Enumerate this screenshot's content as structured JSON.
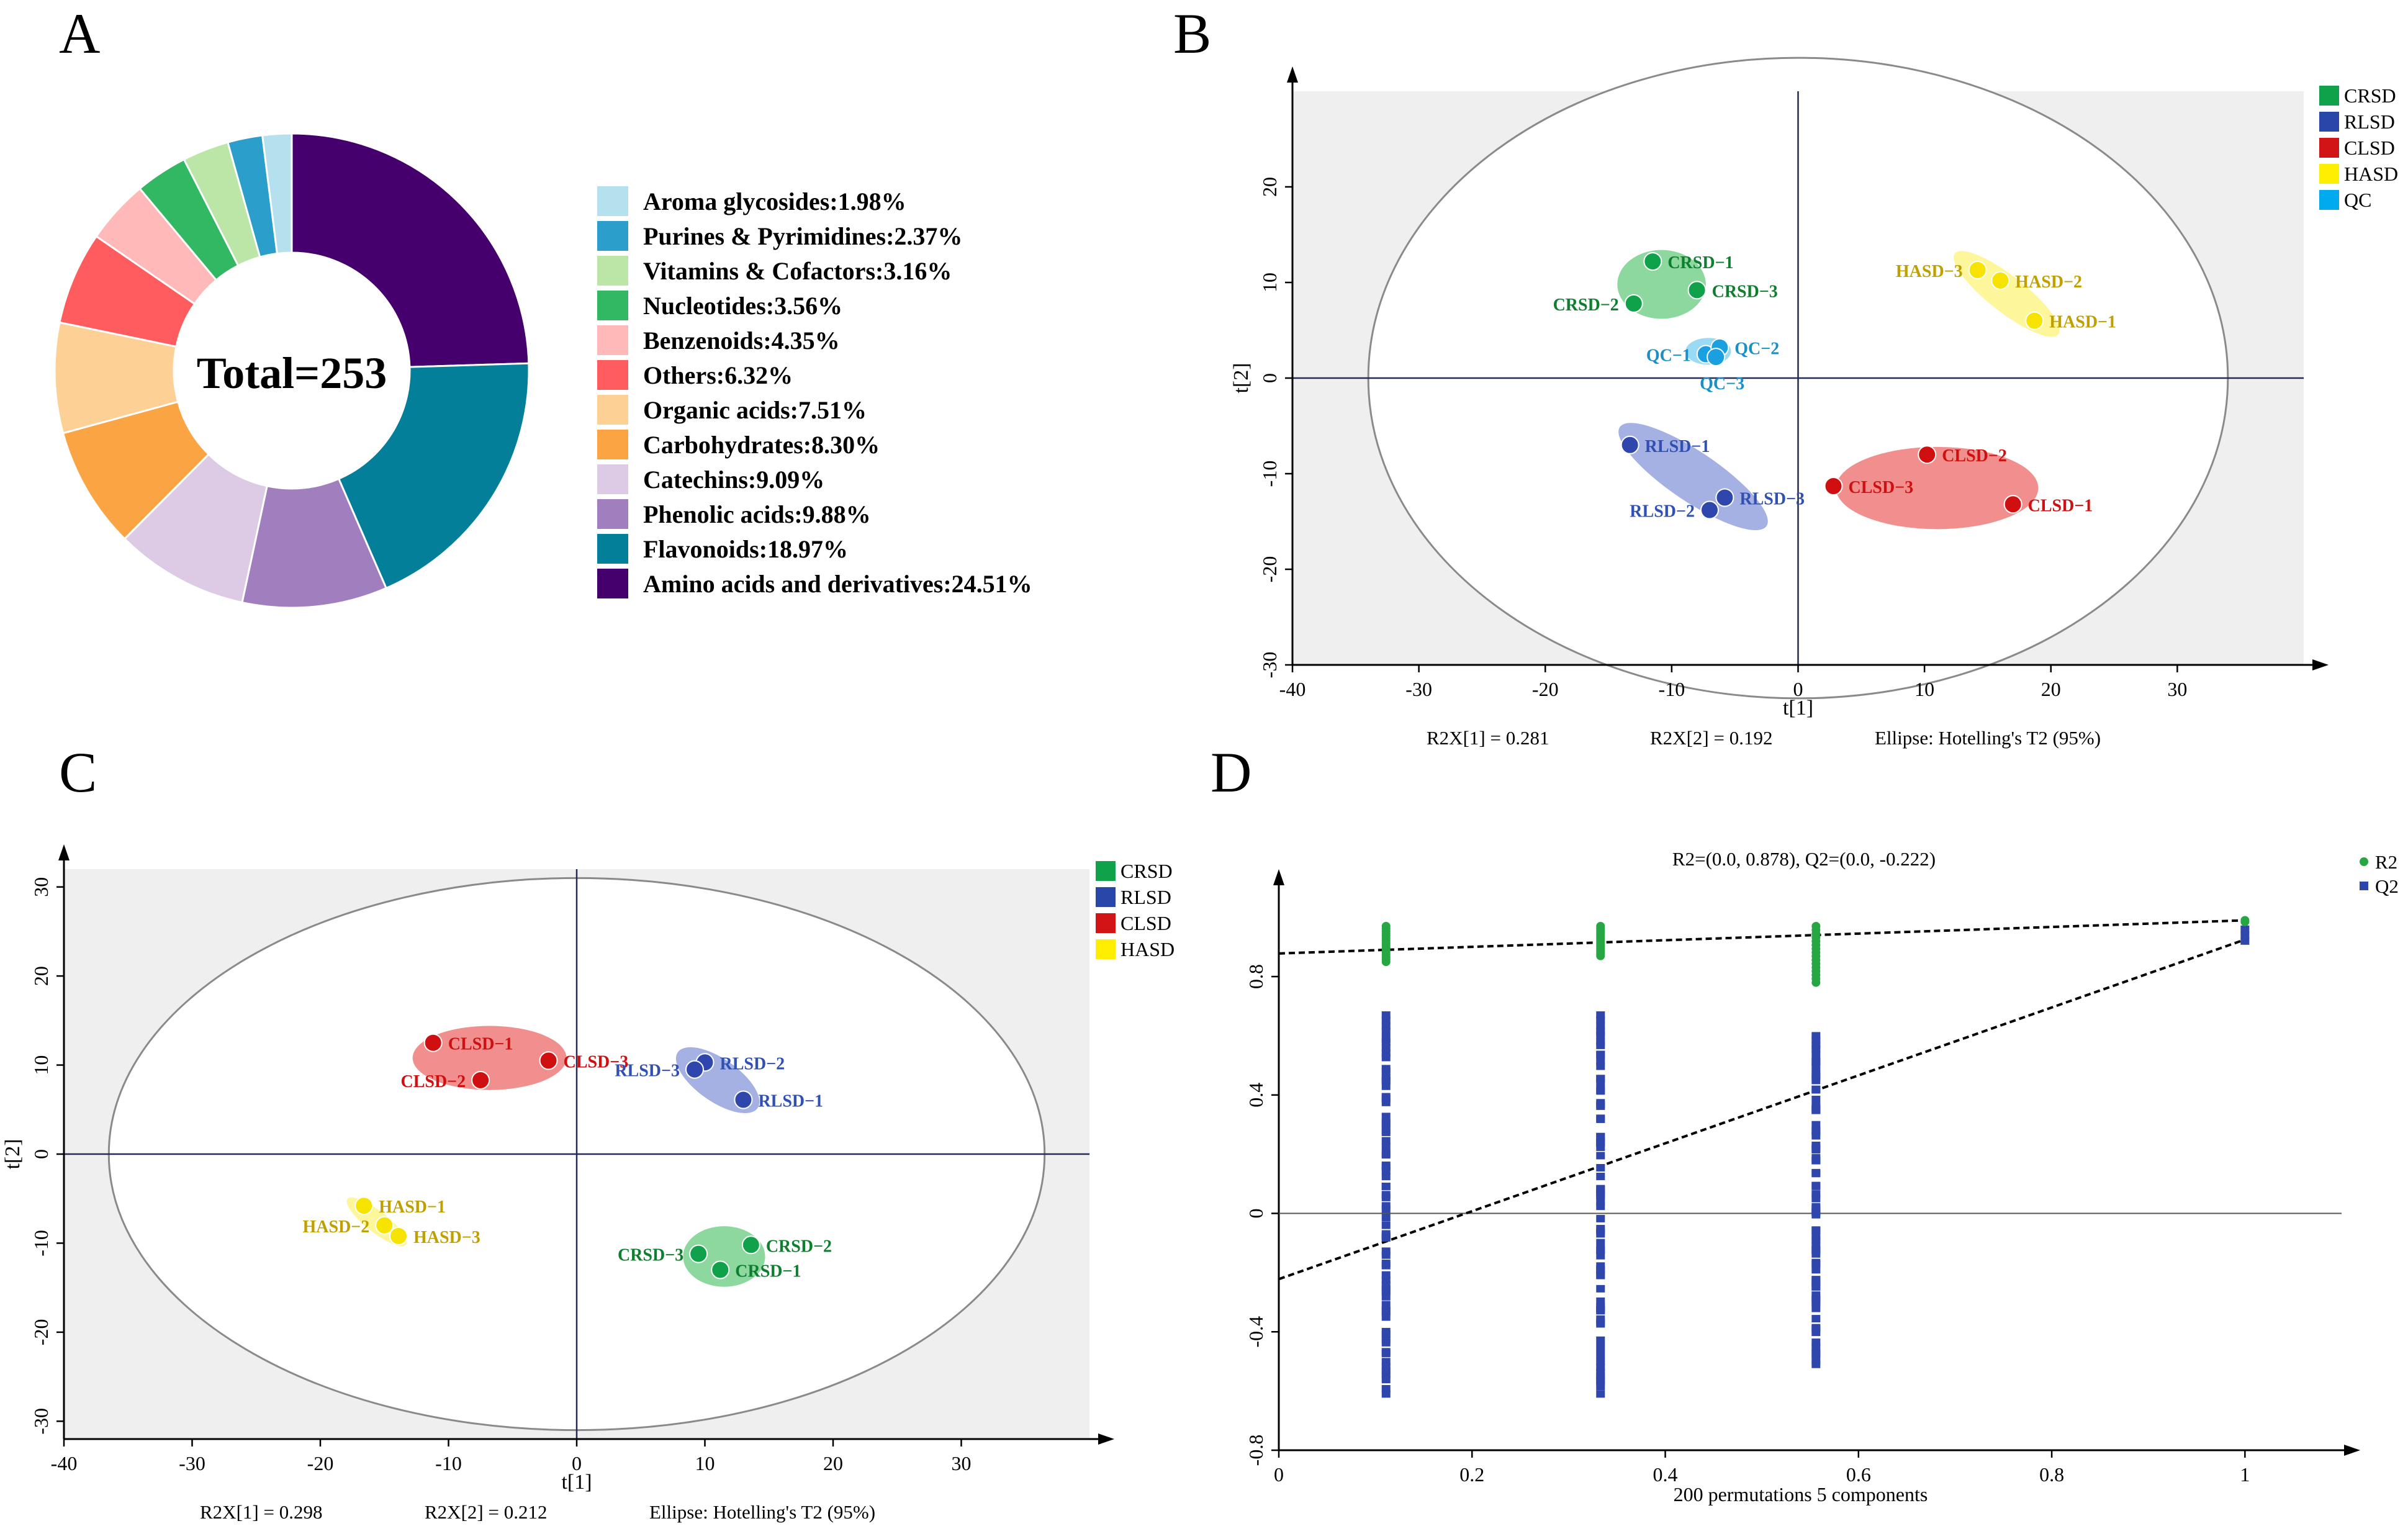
{
  "panels": {
    "a": "A",
    "b": "B",
    "c": "C",
    "d": "D"
  },
  "chart_data": [
    {
      "type": "pie",
      "panel": "A",
      "center_label": "Total=253",
      "total": 253,
      "slices": [
        {
          "label": "Amino acids and derivatives:24.51%",
          "value": 24.51,
          "color": "#46006e"
        },
        {
          "label": "Flavonoids:18.97%",
          "value": 18.97,
          "color": "#047f99"
        },
        {
          "label": "Phenolic acids:9.88%",
          "value": 9.88,
          "color": "#a17fbe"
        },
        {
          "label": "Catechins:9.09%",
          "value": 9.09,
          "color": "#ddcbe6"
        },
        {
          "label": "Carbohydrates:8.30%",
          "value": 8.3,
          "color": "#fba444"
        },
        {
          "label": "Organic acids:7.51%",
          "value": 7.51,
          "color": "#fdd195"
        },
        {
          "label": "Others:6.32%",
          "value": 6.32,
          "color": "#fe5c5e"
        },
        {
          "label": "Benzenoids:4.35%",
          "value": 4.35,
          "color": "#ffb9b9"
        },
        {
          "label": "Nucleotides:3.56%",
          "value": 3.56,
          "color": "#32b863"
        },
        {
          "label": "Vitamins & Cofactors:3.16%",
          "value": 3.16,
          "color": "#bce6a8"
        },
        {
          "label": "Purines & Pyrimidines:2.37%",
          "value": 2.37,
          "color": "#2c9ecc"
        },
        {
          "label": "Aroma glycosides:1.98%",
          "value": 1.98,
          "color": "#b5e1ef"
        }
      ]
    },
    {
      "type": "scatter",
      "panel": "B",
      "xlabel": "t[1]",
      "ylabel": "t[2]",
      "xlim": [
        -40,
        40
      ],
      "ylim": [
        -30,
        30
      ],
      "xticks": [
        -40,
        -30,
        -20,
        -10,
        0,
        10,
        20,
        30
      ],
      "yticks": [
        -30,
        -20,
        -10,
        0,
        10,
        20
      ],
      "ellipse": {
        "rx": 34,
        "ry": 33.5
      },
      "footer": [
        "R2X[1] = 0.281",
        "R2X[2] = 0.192",
        "Ellipse: Hotelling's T2 (95%)"
      ],
      "legend": [
        {
          "name": "CRSD",
          "color": "#0fa24a"
        },
        {
          "name": "RLSD",
          "color": "#2947a9"
        },
        {
          "name": "CLSD",
          "color": "#d21416"
        },
        {
          "name": "HASD",
          "color": "#ffee00"
        },
        {
          "name": "QC",
          "color": "#00aaee"
        }
      ],
      "groups": [
        {
          "name": "CRSD",
          "fill": "#7fd495",
          "dot": "#0fa24a",
          "text": "#0d7f2e",
          "cx": -10.8,
          "cy": 9.8,
          "rx": 3.5,
          "ry": 3.6,
          "rot": 0,
          "points": [
            {
              "label": "CRSD−1",
              "x": -11.5,
              "y": 12.2,
              "lx": 2
            },
            {
              "label": "CRSD−2",
              "x": -13,
              "y": 7.8,
              "lx": -2
            },
            {
              "label": "CRSD−3",
              "x": -8,
              "y": 9.2,
              "lx": 2
            }
          ]
        },
        {
          "name": "QC",
          "fill": "#8fd6f3",
          "dot": "#1a9fe0",
          "text": "#1a8fc8",
          "cx": -7.1,
          "cy": 2.8,
          "rx": 1.8,
          "ry": 1.4,
          "rot": 0,
          "points": [
            {
              "label": "QC−1",
              "x": -7.3,
              "y": 2.5,
              "lx": -2
            },
            {
              "label": "QC−2",
              "x": -6.2,
              "y": 3.2,
              "lx": 2
            },
            {
              "label": "QC−3",
              "x": -6.5,
              "y": 2.2,
              "lx": 0
            }
          ]
        },
        {
          "name": "HASD",
          "fill": "#fdf58f",
          "dot": "#f6e400",
          "text": "#c0a000",
          "cx": 16.5,
          "cy": 8.8,
          "rx": 5.2,
          "ry": 1.9,
          "rot": 38,
          "points": [
            {
              "label": "HASD−1",
              "x": 18.7,
              "y": 6,
              "lx": 2
            },
            {
              "label": "HASD−2",
              "x": 16,
              "y": 10.2,
              "lx": 2
            },
            {
              "label": "HASD−3",
              "x": 14.2,
              "y": 11.3,
              "lx": -2
            }
          ]
        },
        {
          "name": "RLSD",
          "fill": "#9ba8e0",
          "dot": "#2f46ad",
          "text": "#3050b4",
          "cx": -8.3,
          "cy": -10.3,
          "rx": 7,
          "ry": 2.6,
          "rot": 34,
          "points": [
            {
              "label": "RLSD−1",
              "x": -13.3,
              "y": -7,
              "lx": 2
            },
            {
              "label": "RLSD−2",
              "x": -7,
              "y": -13.8,
              "lx": -2
            },
            {
              "label": "RLSD−3",
              "x": -5.8,
              "y": -12.5,
              "lx": 2
            }
          ]
        },
        {
          "name": "CLSD",
          "fill": "#f08282",
          "dot": "#d01010",
          "text": "#d01010",
          "cx": 11,
          "cy": -11.5,
          "rx": 8,
          "ry": 4.3,
          "rot": 0,
          "points": [
            {
              "label": "CLSD−1",
              "x": 17,
              "y": -13.2,
              "lx": 2
            },
            {
              "label": "CLSD−2",
              "x": 10.2,
              "y": -8,
              "lx": 2
            },
            {
              "label": "CLSD−3",
              "x": 2.8,
              "y": -11.3,
              "lx": 2
            }
          ]
        }
      ]
    },
    {
      "type": "scatter",
      "panel": "C",
      "xlabel": "t[1]",
      "ylabel": "t[2]",
      "xlim": [
        -40,
        40
      ],
      "ylim": [
        -32,
        32
      ],
      "xticks": [
        -40,
        -30,
        -20,
        -10,
        0,
        10,
        20,
        30
      ],
      "yticks": [
        -30,
        -20,
        -10,
        0,
        10,
        20,
        30
      ],
      "ellipse": {
        "rx": 36.5,
        "ry": 31
      },
      "footer": [
        "R2X[1] = 0.298",
        "R2X[2] = 0.212",
        "Ellipse: Hotelling's T2 (95%)"
      ],
      "legend": [
        {
          "name": "CRSD",
          "color": "#0fa24a"
        },
        {
          "name": "RLSD",
          "color": "#2947a9"
        },
        {
          "name": "CLSD",
          "color": "#d21416"
        },
        {
          "name": "HASD",
          "color": "#ffee00"
        }
      ],
      "groups": [
        {
          "name": "CLSD",
          "fill": "#f08282",
          "dot": "#d01010",
          "text": "#d01010",
          "cx": -6.8,
          "cy": 10.8,
          "rx": 6,
          "ry": 3.6,
          "rot": 0,
          "points": [
            {
              "label": "CLSD−1",
              "x": -11.2,
              "y": 12.5,
              "lx": 2
            },
            {
              "label": "CLSD−2",
              "x": -7.5,
              "y": 8.3,
              "lx": -2
            },
            {
              "label": "CLSD−3",
              "x": -2.2,
              "y": 10.5,
              "lx": 2
            }
          ]
        },
        {
          "name": "RLSD",
          "fill": "#9ba8e0",
          "dot": "#2f46ad",
          "text": "#3050b4",
          "cx": 11,
          "cy": 8.3,
          "rx": 3.8,
          "ry": 2.4,
          "rot": 35,
          "points": [
            {
              "label": "RLSD−1",
              "x": 13,
              "y": 6.1,
              "lx": 2
            },
            {
              "label": "RLSD−2",
              "x": 10,
              "y": 10.3,
              "lx": 2
            },
            {
              "label": "RLSD−3",
              "x": 9.2,
              "y": 9.5,
              "lx": -2
            }
          ]
        },
        {
          "name": "HASD",
          "fill": "#fdf58f",
          "dot": "#f6e400",
          "text": "#c0a000",
          "cx": -15.6,
          "cy": -7.6,
          "rx": 2.9,
          "ry": 1.2,
          "rot": 38,
          "points": [
            {
              "label": "HASD−1",
              "x": -16.6,
              "y": -5.8,
              "lx": 2
            },
            {
              "label": "HASD−2",
              "x": -15,
              "y": -8,
              "lx": -2
            },
            {
              "label": "HASD−3",
              "x": -13.9,
              "y": -9.2,
              "lx": 2
            }
          ]
        },
        {
          "name": "CRSD",
          "fill": "#7fd495",
          "dot": "#0fa24a",
          "text": "#0d7f2e",
          "cx": 11.5,
          "cy": -11.5,
          "rx": 3.2,
          "ry": 3.4,
          "rot": 0,
          "points": [
            {
              "label": "CRSD−1",
              "x": 11.2,
              "y": -13,
              "lx": 2
            },
            {
              "label": "CRSD−2",
              "x": 13.6,
              "y": -10.2,
              "lx": 2
            },
            {
              "label": "CRSD−3",
              "x": 9.5,
              "y": -11.2,
              "lx": -2
            }
          ]
        }
      ]
    },
    {
      "type": "scatter",
      "panel": "D",
      "title": "R2=(0.0, 0.878), Q2=(0.0, -0.222)",
      "xlabel": "200 permutations 5 components",
      "xlim": [
        0,
        1.1
      ],
      "ylim": [
        -0.8,
        1.1
      ],
      "xticks": [
        0,
        0.2,
        0.4,
        0.6,
        0.8,
        1
      ],
      "yticks": [
        -0.8,
        -0.4,
        0,
        0.4,
        0.8
      ],
      "legend": [
        {
          "name": "R2",
          "color": "#27a744",
          "marker": "circle"
        },
        {
          "name": "Q2",
          "color": "#2f46ad",
          "marker": "square"
        }
      ],
      "r2_line": {
        "intercept": 0.878,
        "end": [
          1,
          0.99
        ]
      },
      "q2_line": {
        "intercept": -0.222,
        "end": [
          1,
          0.925
        ]
      },
      "r2_points": [
        {
          "x": 0.111,
          "min": 0.85,
          "max": 0.97
        },
        {
          "x": 0.333,
          "min": 0.87,
          "max": 0.97
        },
        {
          "x": 0.556,
          "min": 0.78,
          "max": 0.97
        },
        {
          "x": 1,
          "min": 0.985,
          "max": 0.99
        }
      ],
      "q2_points": [
        {
          "x": 0.111,
          "min": -0.61,
          "max": 0.67
        },
        {
          "x": 0.333,
          "min": -0.61,
          "max": 0.67
        },
        {
          "x": 0.556,
          "min": -0.51,
          "max": 0.6
        },
        {
          "x": 1,
          "min": 0.92,
          "max": 0.96
        }
      ]
    }
  ]
}
